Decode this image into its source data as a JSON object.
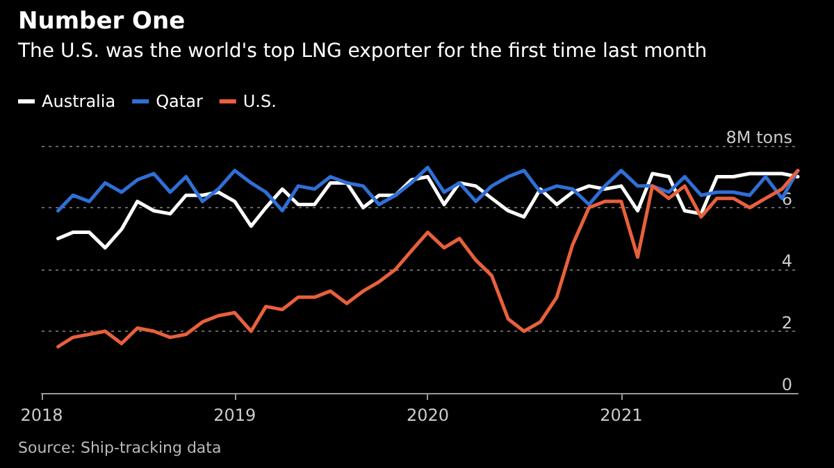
{
  "chart_data": {
    "type": "line",
    "title": "Number One",
    "subtitle": "The U.S. was the world's top LNG exporter for the first time last month",
    "annotations": [
      "Source: Ship-tracking data"
    ],
    "x": [
      "2018-02",
      "2018-03",
      "2018-04",
      "2018-05",
      "2018-06",
      "2018-07",
      "2018-08",
      "2018-09",
      "2018-10",
      "2018-11",
      "2018-12",
      "2019-01",
      "2019-02",
      "2019-03",
      "2019-04",
      "2019-05",
      "2019-06",
      "2019-07",
      "2019-08",
      "2019-09",
      "2019-10",
      "2019-11",
      "2019-12",
      "2020-01",
      "2020-02",
      "2020-03",
      "2020-04",
      "2020-05",
      "2020-06",
      "2020-07",
      "2020-08",
      "2020-09",
      "2020-10",
      "2020-11",
      "2020-12",
      "2021-01",
      "2021-02",
      "2021-03",
      "2021-04",
      "2021-05",
      "2021-06",
      "2021-07",
      "2021-08",
      "2021-09",
      "2021-10",
      "2021-11",
      "2021-12"
    ],
    "series": [
      {
        "name": "Australia",
        "color": "#ffffff",
        "values": [
          5.0,
          5.2,
          5.2,
          4.7,
          5.3,
          6.2,
          5.9,
          5.8,
          6.4,
          6.4,
          6.5,
          6.2,
          5.4,
          6.0,
          6.6,
          6.1,
          6.1,
          6.8,
          6.8,
          6.0,
          6.4,
          6.4,
          6.9,
          7.0,
          6.1,
          6.8,
          6.7,
          6.3,
          5.9,
          5.7,
          6.6,
          6.1,
          6.5,
          6.7,
          6.6,
          6.7,
          5.9,
          7.1,
          7.0,
          5.9,
          5.8,
          7.0,
          7.0,
          7.1,
          7.1,
          7.1,
          7.0
        ]
      },
      {
        "name": "Qatar",
        "color": "#2f6fd6",
        "values": [
          5.9,
          6.4,
          6.2,
          6.8,
          6.5,
          6.9,
          7.1,
          6.5,
          7.0,
          6.2,
          6.6,
          7.2,
          6.8,
          6.5,
          5.9,
          6.7,
          6.6,
          7.0,
          6.8,
          6.7,
          6.1,
          6.4,
          6.8,
          7.3,
          6.5,
          6.8,
          6.2,
          6.7,
          7.0,
          7.2,
          6.5,
          6.7,
          6.6,
          6.1,
          6.7,
          7.2,
          6.7,
          6.7,
          6.5,
          7.0,
          6.4,
          6.5,
          6.5,
          6.4,
          7.0,
          6.3,
          7.2
        ]
      },
      {
        "name": "U.S.",
        "color": "#e8603c",
        "values": [
          1.5,
          1.8,
          1.9,
          2.0,
          1.6,
          2.1,
          2.0,
          1.8,
          1.9,
          2.3,
          2.5,
          2.6,
          2.0,
          2.8,
          2.7,
          3.1,
          3.1,
          3.3,
          2.9,
          3.3,
          3.6,
          4.0,
          4.6,
          5.2,
          4.7,
          5.0,
          4.3,
          3.8,
          2.4,
          2.0,
          2.3,
          3.1,
          4.8,
          6.0,
          6.2,
          6.2,
          4.4,
          6.7,
          6.3,
          6.7,
          5.7,
          6.3,
          6.3,
          6.0,
          6.3,
          6.6,
          7.2
        ]
      }
    ],
    "xlim": [
      "2018-01",
      "2021-12"
    ],
    "xticks": [
      {
        "value": "2018-01",
        "label": "2018"
      },
      {
        "value": "2019-01",
        "label": "2019"
      },
      {
        "value": "2020-01",
        "label": "2020"
      },
      {
        "value": "2021-01",
        "label": "2021"
      }
    ],
    "ylim": [
      0,
      8
    ],
    "yticks": [
      0,
      2,
      4,
      6,
      {
        "value": 8,
        "label": "8M tons"
      }
    ],
    "grid": "y",
    "legend": "top left",
    "marker": "none",
    "line_style": "solid"
  }
}
